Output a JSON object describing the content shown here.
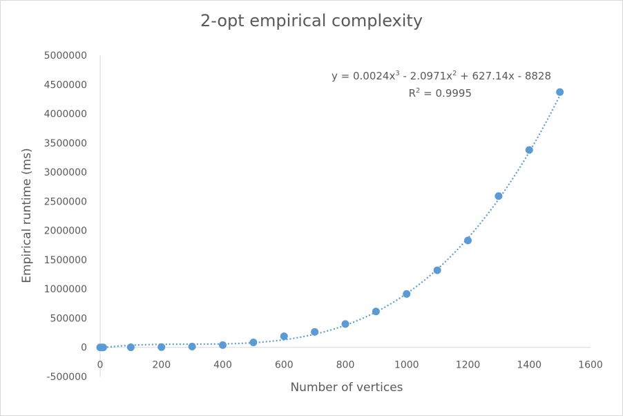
{
  "chart_data": {
    "type": "scatter",
    "title": "2-opt empirical complexity",
    "xlabel": "Number of vertices",
    "ylabel": "Empirical runtime (ms)",
    "xlim": [
      0,
      1600
    ],
    "ylim": [
      -500000,
      5000000
    ],
    "x_ticks": [
      0,
      200,
      400,
      600,
      800,
      1000,
      1200,
      1400,
      1600
    ],
    "y_ticks": [
      -500000,
      0,
      500000,
      1000000,
      1500000,
      2000000,
      2500000,
      3000000,
      3500000,
      4000000,
      4500000,
      5000000
    ],
    "grid": false,
    "legend": "none",
    "series": [
      {
        "x": [
          0,
          5,
          10,
          100,
          200,
          300,
          400,
          500,
          600,
          700,
          800,
          900,
          1000,
          1100,
          1200,
          1300,
          1400,
          1500
        ],
        "y": [
          0,
          0,
          0,
          2000,
          5000,
          15000,
          40000,
          85000,
          190000,
          265000,
          400000,
          615000,
          915000,
          1320000,
          1830000,
          2590000,
          3380000,
          4370000
        ]
      }
    ],
    "trendline": {
      "type": "polynomial",
      "coefficients": [
        0.0024,
        -2.0971,
        627.14,
        -8828
      ],
      "style": "dotted",
      "equation": {
        "y_eq": "y = 0.0024x",
        "x3_exp": "3",
        "mid": " - 2.0971x",
        "x2_exp": "2",
        "tail": " + 627.14x - 8828",
        "r2_prefix": "R",
        "r2_exp": "2",
        "r2_value": " = 0.9995"
      }
    },
    "colors": {
      "marker": "#5b9bd5",
      "axis": "#d9d9d9",
      "text": "#595959"
    }
  }
}
